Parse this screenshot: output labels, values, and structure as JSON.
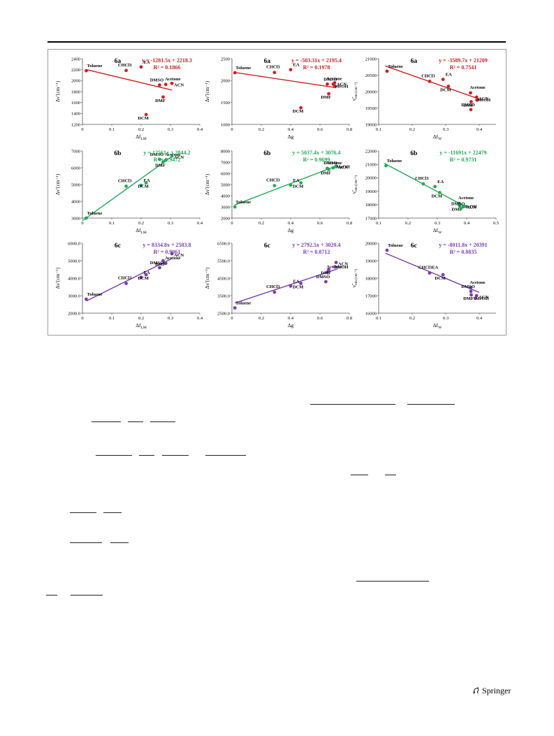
{
  "publisher": {
    "name": "Springer",
    "logo_icon": "springer-horse-icon"
  },
  "colors": {
    "6a": "#cc2222",
    "6b": "#22aa55",
    "6c": "#7a3fb0"
  },
  "chart_data": [
    {
      "id": "6a-lm",
      "type": "scatter",
      "color_key": "6a",
      "panel_label": "6a",
      "equation": "y = -1281.5x + 2218.3",
      "r2": "R² = 0.1866",
      "xlabel": "Δf_LM",
      "ylabel": "Δν̃ (cm⁻¹)",
      "xlim": [
        0,
        0.4
      ],
      "ylim": [
        1200,
        2400
      ],
      "xticks": [
        "0",
        "0.1",
        "0.2",
        "0.3",
        "0.4"
      ],
      "yticks": [
        "1200",
        "1400",
        "1600",
        "1800",
        "2000",
        "2200",
        "2400"
      ],
      "points": [
        {
          "label": "Toluene",
          "x": 0.013,
          "y": 2180
        },
        {
          "label": "CHCl3",
          "x": 0.149,
          "y": 2185
        },
        {
          "label": "EA",
          "x": 0.2,
          "y": 2250
        },
        {
          "label": "DCM",
          "x": 0.217,
          "y": 1380
        },
        {
          "label": "DMF",
          "x": 0.275,
          "y": 1700
        },
        {
          "label": "DMSO",
          "x": 0.263,
          "y": 1920
        },
        {
          "label": "Acetone",
          "x": 0.284,
          "y": 1930
        },
        {
          "label": "ACN",
          "x": 0.305,
          "y": 1950
        }
      ],
      "fit": {
        "slope": -1281.5,
        "intercept": 2218.3,
        "x": [
          0.013,
          0.305
        ]
      }
    },
    {
      "id": "6a-g",
      "type": "scatter",
      "color_key": "6a",
      "panel_label": "6a",
      "equation": "y = -503.31x + 2195.4",
      "r2": "R² = 0.1978",
      "xlabel": "Δg",
      "ylabel": "Δν̃ (cm⁻¹)",
      "xlim": [
        0,
        0.8
      ],
      "ylim": [
        1000,
        2500
      ],
      "xticks": [
        "0",
        "0.2",
        "0.4",
        "0.6",
        "0.8"
      ],
      "yticks": [
        "1000",
        "1500",
        "2000",
        "2500"
      ],
      "points": [
        {
          "label": "Toluene",
          "x": 0.02,
          "y": 2180
        },
        {
          "label": "CHCl3",
          "x": 0.29,
          "y": 2185
        },
        {
          "label": "EA",
          "x": 0.4,
          "y": 2250
        },
        {
          "label": "DCM",
          "x": 0.47,
          "y": 1380
        },
        {
          "label": "DMF",
          "x": 0.66,
          "y": 1700
        },
        {
          "label": "Acetone",
          "x": 0.65,
          "y": 1920
        },
        {
          "label": "DMSO",
          "x": 0.69,
          "y": 1920
        },
        {
          "label": "ACN",
          "x": 0.7,
          "y": 1950
        },
        {
          "label": "MeOH",
          "x": 0.7,
          "y": 1870
        }
      ],
      "fit": {
        "slope": -503.31,
        "intercept": 2195.4,
        "x": [
          0.02,
          0.71
        ]
      }
    },
    {
      "id": "6a-w",
      "type": "scatter",
      "color_key": "6a",
      "panel_label": "6a",
      "equation": "y = -3589.7x + 21209",
      "r2": "R² = 0.7541",
      "xlabel": "Δf_W",
      "ylabel": "ν̃_em (cm⁻¹)",
      "xlim": [
        0.1,
        0.45
      ],
      "ylim": [
        19000,
        21000
      ],
      "xticks": [
        "0.1",
        "0.2",
        "0.3",
        "0.4"
      ],
      "yticks": [
        "19000",
        "19500",
        "20000",
        "20500",
        "21000"
      ],
      "points": [
        {
          "label": "Toluene",
          "x": 0.125,
          "y": 20620
        },
        {
          "label": "CHCl3",
          "x": 0.252,
          "y": 20310
        },
        {
          "label": "EA",
          "x": 0.292,
          "y": 20370
        },
        {
          "label": "DCM",
          "x": 0.308,
          "y": 20160
        },
        {
          "label": "Acetone",
          "x": 0.374,
          "y": 19960
        },
        {
          "label": "DMF",
          "x": 0.376,
          "y": 19690
        },
        {
          "label": "DMSO",
          "x": 0.375,
          "y": 19450
        },
        {
          "label": "ACN",
          "x": 0.392,
          "y": 19830
        },
        {
          "label": "MeOH",
          "x": 0.393,
          "y": 19740
        }
      ],
      "fit": {
        "slope": -3589.7,
        "intercept": 21209,
        "x": [
          0.12,
          0.4
        ]
      }
    },
    {
      "id": "6b-lm",
      "type": "scatter",
      "color_key": "6b",
      "panel_label": "6b",
      "equation": "y = 12561x + 2844.2",
      "r2": "R² = 0.9472",
      "xlabel": "Δf_LM",
      "ylabel": "Δν̃ (cm⁻¹)",
      "xlim": [
        0,
        0.4
      ],
      "ylim": [
        3000,
        7000
      ],
      "xticks": [
        "0",
        "0.1",
        "0.2",
        "0.3",
        "0.4"
      ],
      "yticks": [
        "3000",
        "4000",
        "5000",
        "6000",
        "7000"
      ],
      "points": [
        {
          "label": "Toluene",
          "x": 0.013,
          "y": 3000
        },
        {
          "label": "CHCl3",
          "x": 0.149,
          "y": 4900
        },
        {
          "label": "EA",
          "x": 0.2,
          "y": 4950
        },
        {
          "label": "DCM",
          "x": 0.217,
          "y": 5100
        },
        {
          "label": "DMF",
          "x": 0.275,
          "y": 6350
        },
        {
          "label": "DMSO",
          "x": 0.263,
          "y": 6500
        },
        {
          "label": "Acetone",
          "x": 0.284,
          "y": 6450
        },
        {
          "label": "ACN",
          "x": 0.305,
          "y": 6700
        }
      ],
      "fit": {
        "slope": 12561,
        "intercept": 2844.2,
        "x": [
          0.0,
          0.305
        ]
      }
    },
    {
      "id": "6b-g",
      "type": "scatter",
      "color_key": "6b",
      "panel_label": "6b",
      "equation": "y = 5037.4x + 3076.4",
      "r2": "R² = 0.9699",
      "xlabel": "Δg",
      "ylabel": "Δν̃ (cm⁻¹)",
      "xlim": [
        0,
        0.8
      ],
      "ylim": [
        2000,
        8000
      ],
      "xticks": [
        "0",
        "0.2",
        "0.4",
        "0.6",
        "0.8"
      ],
      "yticks": [
        "2000",
        "3000",
        "4000",
        "5000",
        "6000",
        "7000",
        "8000"
      ],
      "points": [
        {
          "label": "Toluene",
          "x": 0.02,
          "y": 3000
        },
        {
          "label": "CHCl3",
          "x": 0.29,
          "y": 4900
        },
        {
          "label": "EA",
          "x": 0.4,
          "y": 4950
        },
        {
          "label": "DCM",
          "x": 0.47,
          "y": 5150
        },
        {
          "label": "Acetone",
          "x": 0.65,
          "y": 6450
        },
        {
          "label": "DMF",
          "x": 0.66,
          "y": 6350
        },
        {
          "label": "DMSO",
          "x": 0.69,
          "y": 6500
        },
        {
          "label": "ACN",
          "x": 0.71,
          "y": 6650
        },
        {
          "label": "MeOH",
          "x": 0.71,
          "y": 6600
        }
      ],
      "fit": {
        "slope": 5037.4,
        "intercept": 3076.4,
        "x": [
          0.02,
          0.72
        ]
      }
    },
    {
      "id": "6b-w",
      "type": "scatter",
      "color_key": "6b",
      "panel_label": "6b",
      "equation": "y = -11691x + 22479",
      "r2": "R² = 0.9731",
      "xlabel": "Δf_W",
      "ylabel": "ν̃_em (cm⁻¹)",
      "xlim": [
        0.1,
        0.5
      ],
      "ylim": [
        17000,
        22000
      ],
      "xticks": [
        "0.1",
        "0.2",
        "0.3",
        "0.4",
        "0.5"
      ],
      "yticks": [
        "17000",
        "18000",
        "19000",
        "20000",
        "21000",
        "22000"
      ],
      "points": [
        {
          "label": "Toluene",
          "x": 0.125,
          "y": 20900
        },
        {
          "label": "CHCl3",
          "x": 0.252,
          "y": 19550
        },
        {
          "label": "EA",
          "x": 0.292,
          "y": 19350
        },
        {
          "label": "DCM",
          "x": 0.308,
          "y": 18900
        },
        {
          "label": "Acetone",
          "x": 0.374,
          "y": 18100
        },
        {
          "label": "DMF",
          "x": 0.376,
          "y": 17900
        },
        {
          "label": "DMSO",
          "x": 0.38,
          "y": 17700
        },
        {
          "label": "MeOH",
          "x": 0.388,
          "y": 17850
        },
        {
          "label": "ACN",
          "x": 0.392,
          "y": 17900
        }
      ],
      "fit": {
        "slope": -11691,
        "intercept": 22479,
        "x": [
          0.12,
          0.4
        ]
      }
    },
    {
      "id": "6c-lm",
      "type": "scatter",
      "color_key": "6c",
      "panel_label": "6c",
      "equation": "y = 8334.8x + 2583.8",
      "r2": "R² = 0.9061",
      "xlabel": "Δf_LM",
      "ylabel": "Δν̃ (cm⁻¹)",
      "xlim": [
        0,
        0.4
      ],
      "ylim": [
        2000,
        6000
      ],
      "xticks": [
        "0",
        "0.1",
        "0.2",
        "0.3",
        "0.4"
      ],
      "yticks": [
        "2000.0",
        "3000.0",
        "4000.0",
        "5000.0",
        "6000.0"
      ],
      "points": [
        {
          "label": "Toluene",
          "x": 0.013,
          "y": 2800
        },
        {
          "label": "CHCl3",
          "x": 0.149,
          "y": 3700
        },
        {
          "label": "EA",
          "x": 0.2,
          "y": 4050
        },
        {
          "label": "DCM",
          "x": 0.217,
          "y": 4200
        },
        {
          "label": "DMSO",
          "x": 0.263,
          "y": 4600
        },
        {
          "label": "Acetone",
          "x": 0.284,
          "y": 4850
        },
        {
          "label": "DMF",
          "x": 0.275,
          "y": 5000
        },
        {
          "label": "ACN",
          "x": 0.305,
          "y": 5400
        }
      ],
      "fit": {
        "slope": 8334.8,
        "intercept": 2583.8,
        "x": [
          0.013,
          0.305
        ]
      }
    },
    {
      "id": "6c-g",
      "type": "scatter",
      "color_key": "6c",
      "panel_label": "6c",
      "equation": "y = 2792.5x + 3020.4",
      "r2": "R² = 0.8712",
      "xlabel": "Δg",
      "ylabel": "Δν̃ (cm⁻¹)",
      "xlim": [
        0,
        0.8
      ],
      "ylim": [
        2500,
        6500
      ],
      "xticks": [
        "0",
        "0.2",
        "0.4",
        "0.6",
        "0.8"
      ],
      "yticks": [
        "2500.0",
        "3500.0",
        "4500.0",
        "5500.0",
        "6500.0"
      ],
      "points": [
        {
          "label": "Toluene",
          "x": 0.02,
          "y": 2800
        },
        {
          "label": "CHCl3",
          "x": 0.29,
          "y": 3700
        },
        {
          "label": "EA",
          "x": 0.4,
          "y": 4050
        },
        {
          "label": "DCM",
          "x": 0.47,
          "y": 4200
        },
        {
          "label": "DMSO",
          "x": 0.64,
          "y": 4300
        },
        {
          "label": "Acetone",
          "x": 0.65,
          "y": 4850
        },
        {
          "label": "DMF",
          "x": 0.66,
          "y": 5000
        },
        {
          "label": "MeOH",
          "x": 0.7,
          "y": 5150
        },
        {
          "label": "ACN",
          "x": 0.71,
          "y": 5400
        }
      ],
      "fit": {
        "slope": 2792.5,
        "intercept": 3020.4,
        "x": [
          0.02,
          0.72
        ]
      }
    },
    {
      "id": "6c-w",
      "type": "scatter",
      "color_key": "6c",
      "panel_label": "6c",
      "equation": "y = -8011.8x + 20391",
      "r2": "R² = 0.8835",
      "xlabel": "Δf_W",
      "ylabel": "ν̃_em (cm⁻¹)",
      "xlim": [
        0.1,
        0.45
      ],
      "ylim": [
        16000,
        20000
      ],
      "xticks": [
        "0.1",
        "0.2",
        "0.3",
        "0.4"
      ],
      "yticks": [
        "16000",
        "17000",
        "18000",
        "19000",
        "20000"
      ],
      "points": [
        {
          "label": "Toluene",
          "x": 0.125,
          "y": 19600
        },
        {
          "label": "CHCl3EA",
          "x": 0.252,
          "y": 18300
        },
        {
          "label": "DCM",
          "x": 0.292,
          "y": 18200
        },
        {
          "label": "Acetone",
          "x": 0.374,
          "y": 17450
        },
        {
          "label": "DMSO",
          "x": 0.375,
          "y": 17250
        },
        {
          "label": "DMF",
          "x": 0.376,
          "y": 17050
        },
        {
          "label": "MeOH",
          "x": 0.388,
          "y": 16850
        },
        {
          "label": "ACN",
          "x": 0.392,
          "y": 17000
        }
      ],
      "fit": {
        "slope": -8011.8,
        "intercept": 20391,
        "x": [
          0.12,
          0.4
        ]
      }
    }
  ]
}
